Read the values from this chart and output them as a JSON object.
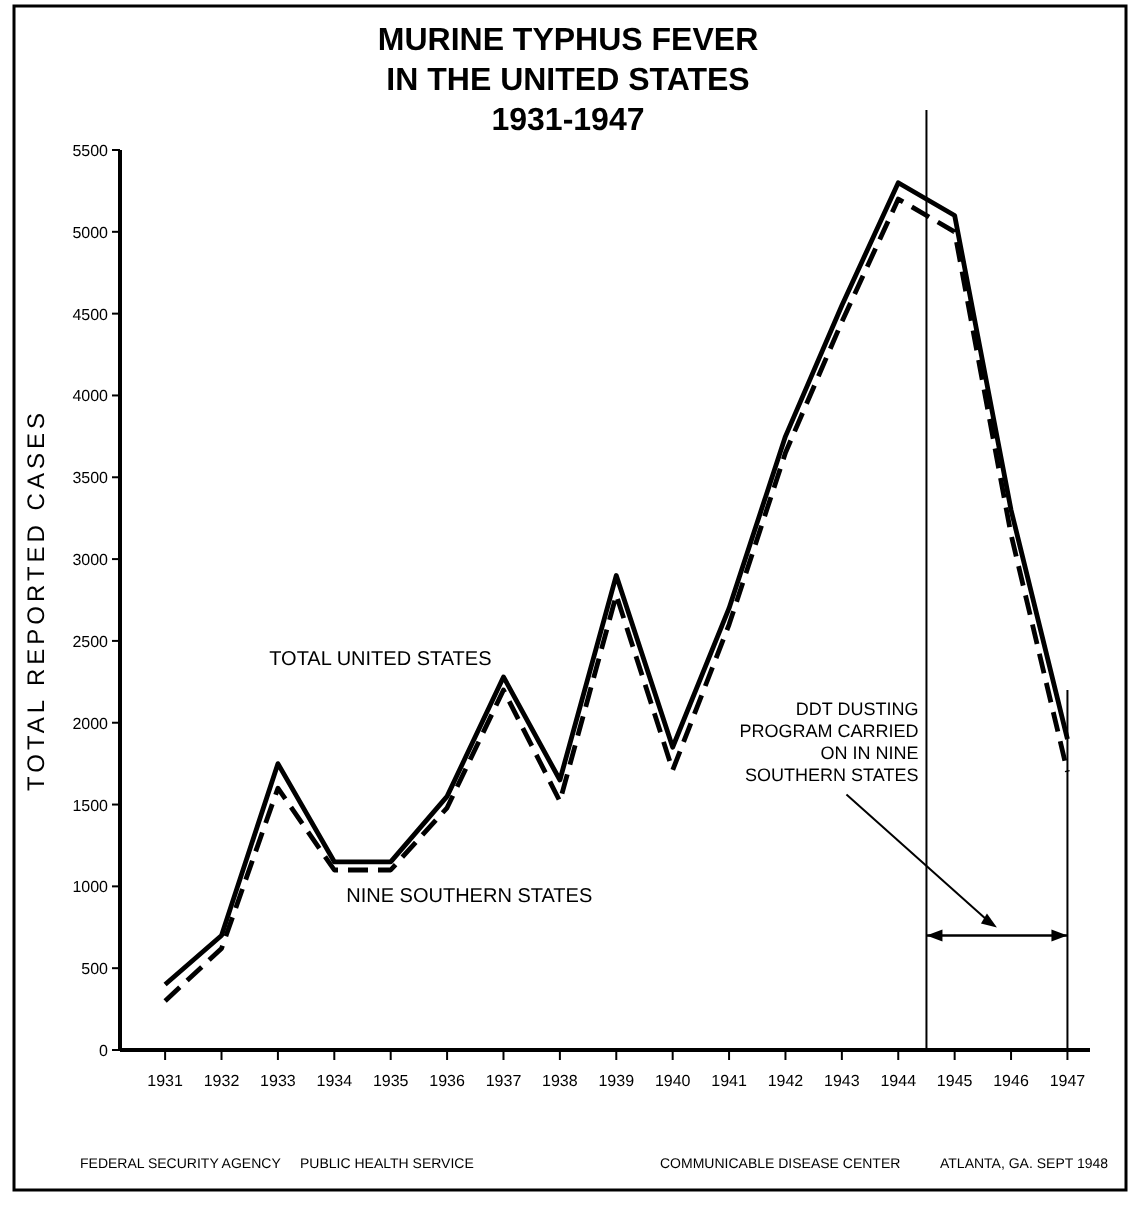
{
  "chart_data": {
    "type": "line",
    "title": "MURINE TYPHUS FEVER\nIN THE UNITED STATES",
    "subtitle": "1931-1947",
    "ylabel": "TOTAL REPORTED CASES",
    "x": [
      1931,
      1932,
      1933,
      1934,
      1935,
      1936,
      1937,
      1938,
      1939,
      1940,
      1941,
      1942,
      1943,
      1944,
      1945,
      1946,
      1947
    ],
    "series": [
      {
        "name": "TOTAL UNITED STATES",
        "color": "#000000",
        "line_style": "solid",
        "values": [
          400,
          700,
          1750,
          1150,
          1150,
          1550,
          2280,
          1650,
          2900,
          1850,
          2700,
          3750,
          4550,
          5300,
          5100,
          3300,
          1900
        ]
      },
      {
        "name": "NINE SOUTHERN STATES",
        "color": "#000000",
        "line_style": "dashed",
        "values": [
          300,
          620,
          1600,
          1100,
          1100,
          1480,
          2200,
          1520,
          2780,
          1710,
          2600,
          3650,
          4450,
          5200,
          5000,
          3150,
          1700
        ]
      }
    ],
    "xlim": [
      1930.2,
      1947.4
    ],
    "xticks": [
      1931,
      1932,
      1933,
      1934,
      1935,
      1936,
      1937,
      1938,
      1939,
      1940,
      1941,
      1942,
      1943,
      1944,
      1945,
      1946,
      1947
    ],
    "ylim": [
      0,
      5500
    ],
    "yticks": [
      0,
      500,
      1000,
      1500,
      2000,
      2500,
      3000,
      3500,
      4000,
      4500,
      5000,
      5500
    ],
    "ref_lines": [
      {
        "axis": "x",
        "value": 1944.5,
        "label": "DDT DUSTING\nPROGRAM CARRIED\nON IN NINE\nSOUTHERN STATES",
        "color": "#000000"
      },
      {
        "axis": "x",
        "value": 1947,
        "color": "#000000"
      }
    ],
    "annotations": [
      "FEDERAL SECURITY AGENCY",
      "PUBLIC HEALTH SERVICE",
      "COMMUNICABLE DISEASE CENTER",
      "ATLANTA, GA. SEPT 1948"
    ],
    "grid": false,
    "marker": "none"
  }
}
